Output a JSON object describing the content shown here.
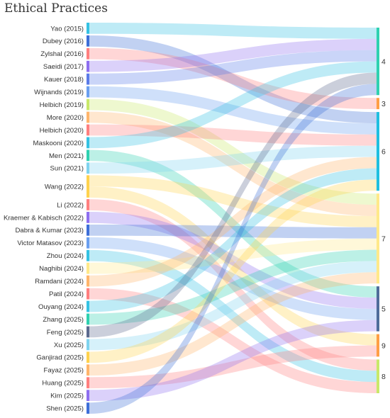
{
  "title": "Ethical Practices",
  "chart_data": {
    "type": "sankey",
    "sources": [
      {
        "label": "Yao (2015)",
        "color": "#35c2e3",
        "targets": [
          "4"
        ]
      },
      {
        "label": "Dubey (2016)",
        "color": "#3d6fd8",
        "targets": [
          "6"
        ]
      },
      {
        "label": "Zylshal (2016)",
        "color": "#ff7f7f",
        "targets": [
          "3"
        ]
      },
      {
        "label": "Saeidi (2017)",
        "color": "#8e6ff0",
        "targets": [
          "4"
        ]
      },
      {
        "label": "Kauer (2018)",
        "color": "#5b7be8",
        "targets": [
          "4"
        ]
      },
      {
        "label": "Wijnands (2019)",
        "color": "#6a9ff0",
        "targets": [
          "6"
        ]
      },
      {
        "label": "Helbich (2019)",
        "color": "#c9e86a",
        "targets": [
          "7"
        ]
      },
      {
        "label": "More (2020)",
        "color": "#ffb56b",
        "targets": [
          "7"
        ]
      },
      {
        "label": "Helbich (2020)",
        "color": "#ff7f7f",
        "targets": [
          "6"
        ]
      },
      {
        "label": "Maskooni (2020)",
        "color": "#35c2e3",
        "targets": [
          "4"
        ]
      },
      {
        "label": "Men (2021)",
        "color": "#2fd1b0",
        "targets": [
          "5"
        ]
      },
      {
        "label": "Sun (2021)",
        "color": "#7fd3ef",
        "targets": [
          "6"
        ]
      },
      {
        "label": "Wang (2022)",
        "color": "#ffd24d",
        "targets": [
          "7",
          "9"
        ]
      },
      {
        "label": "Li (2022)",
        "color": "#ff7f7f",
        "targets": [
          "8"
        ]
      },
      {
        "label": "Kraemer & Kabisch (2022)",
        "color": "#8e6ff0",
        "targets": [
          "5"
        ]
      },
      {
        "label": "Dabra & Kumar (2023)",
        "color": "#3d6fd8",
        "targets": [
          "7"
        ]
      },
      {
        "label": "Victor Matasov (2023)",
        "color": "#6a9ff0",
        "targets": [
          "5"
        ]
      },
      {
        "label": "Zhou (2024)",
        "color": "#35c2e3",
        "targets": [
          "8"
        ]
      },
      {
        "label": "Naghibi (2024)",
        "color": "#ffe98a",
        "targets": [
          "7"
        ]
      },
      {
        "label": "Ramdani (2024)",
        "color": "#ffb56b",
        "targets": [
          "6"
        ]
      },
      {
        "label": "Patil (2024)",
        "color": "#ff7f7f",
        "targets": [
          "8"
        ]
      },
      {
        "label": "Ouyang (2024)",
        "color": "#35c2e3",
        "targets": [
          "6"
        ]
      },
      {
        "label": "Zhang (2025)",
        "color": "#2fd1b0",
        "targets": [
          "7"
        ]
      },
      {
        "label": "Feng (2025)",
        "color": "#5c6a8f",
        "targets": [
          "4"
        ]
      },
      {
        "label": "Xu (2025)",
        "color": "#7fd3ef",
        "targets": [
          "7"
        ]
      },
      {
        "label": "Ganjirad (2025)",
        "color": "#ffd24d",
        "targets": [
          "6"
        ]
      },
      {
        "label": "Fayaz (2025)",
        "color": "#ffb56b",
        "targets": [
          "7"
        ]
      },
      {
        "label": "Huang (2025)",
        "color": "#ff7f7f",
        "targets": [
          "9"
        ]
      },
      {
        "label": "Kim (2025)",
        "color": "#8e6ff0",
        "targets": [
          "5"
        ]
      },
      {
        "label": "Shen (2025)",
        "color": "#3d6fd8",
        "targets": [
          "4"
        ]
      }
    ],
    "targets": [
      {
        "label": "4",
        "color": "#2fd1b0"
      },
      {
        "label": "3",
        "color": "#ff9f45"
      },
      {
        "label": "6",
        "color": "#1fbfe0"
      },
      {
        "label": "7",
        "color": "#ffe98a"
      },
      {
        "label": "5",
        "color": "#4f6c9a"
      },
      {
        "label": "9",
        "color": "#ff9f45"
      },
      {
        "label": "8",
        "color": "#c9e86a"
      }
    ]
  }
}
